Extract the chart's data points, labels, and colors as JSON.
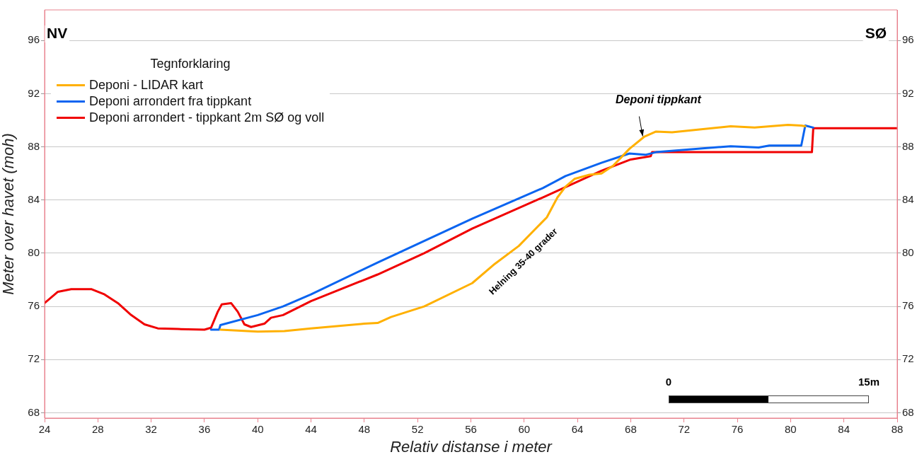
{
  "chart_data": {
    "type": "line",
    "xlabel": "Relativ distanse i meter",
    "ylabel": "Meter over havet (moh)",
    "legend_title": "Tegnforklaring",
    "legend": "top left",
    "grid": "y",
    "marker": "none",
    "line_style": "solid",
    "xlim": [
      24,
      88
    ],
    "xticks": [
      24,
      28,
      32,
      36,
      40,
      44,
      48,
      52,
      56,
      60,
      64,
      68,
      72,
      76,
      80,
      84,
      88
    ],
    "ylim": [
      67.6,
      98.3
    ],
    "yticks": [
      68,
      72,
      76,
      80,
      84,
      88,
      92,
      96
    ],
    "y2lim": [
      67.6,
      98.3
    ],
    "y2ticks": [
      68,
      72,
      76,
      80,
      84,
      88,
      92,
      96
    ],
    "series": [
      {
        "name": "Deponi - LIDAR kart",
        "color": "#ffb000",
        "x": [
          37.2,
          40,
          42,
          44,
          48,
          49,
          50,
          52.5,
          56.1,
          57.8,
          59.6,
          61.7,
          62.5,
          63.1,
          63.8,
          64.9,
          65.8,
          66.7,
          67.9,
          69,
          69.9,
          71.1,
          75.5,
          77.3,
          79.8,
          80.8,
          81.1
        ],
        "values": [
          74.25,
          74.1,
          74.15,
          74.35,
          74.7,
          74.75,
          75.2,
          76,
          77.75,
          79.2,
          80.55,
          82.7,
          84.2,
          85,
          85.6,
          85.9,
          86,
          86.6,
          87.85,
          88.75,
          89.15,
          89.1,
          89.55,
          89.45,
          89.65,
          89.6,
          89.55
        ]
      },
      {
        "name": "Deponi arrondert fra tippkant",
        "color": "#0a64f0",
        "x": [
          36.5,
          37.1,
          37.2,
          40,
          41.9,
          44,
          49,
          56.1,
          61.4,
          63.1,
          65.8,
          67.9,
          69.1,
          69.9,
          75.5,
          77.6,
          78.4,
          80.8,
          81.1,
          81.7
        ],
        "values": [
          74.25,
          74.25,
          74.6,
          75.35,
          76,
          76.9,
          79.3,
          82.6,
          84.9,
          85.8,
          86.8,
          87.5,
          87.4,
          87.6,
          88.05,
          87.95,
          88.1,
          88.1,
          89.6,
          89.45
        ]
      },
      {
        "name": "Deponi arrondert - tippkant 2m SØ og voll",
        "color": "#f00000",
        "x": [
          24,
          25,
          26,
          27.5,
          28.5,
          29.5,
          30.5,
          31.5,
          32.5,
          34,
          36,
          36.5,
          37,
          37.3,
          38,
          38.5,
          39,
          39.5,
          40.5,
          41,
          41.9,
          44,
          49,
          52.5,
          56.1,
          61.4,
          65.8,
          68,
          69.5,
          69.6,
          81.6,
          81.7,
          84,
          88
        ],
        "values": [
          76.25,
          77.1,
          77.3,
          77.3,
          76.9,
          76.25,
          75.35,
          74.65,
          74.35,
          74.3,
          74.25,
          74.4,
          75.6,
          76.15,
          76.25,
          75.6,
          74.65,
          74.45,
          74.7,
          75.15,
          75.35,
          76.4,
          78.4,
          80,
          81.85,
          84.2,
          86.2,
          87.05,
          87.3,
          87.6,
          87.6,
          89.4,
          89.4,
          89.4
        ]
      }
    ],
    "annotations": [
      "NV",
      "SØ",
      {
        "text": "Deponi tippkant",
        "x": 68.9,
        "y": 88.8
      },
      "Helning 35-40 grader",
      "0",
      "15m"
    ]
  }
}
